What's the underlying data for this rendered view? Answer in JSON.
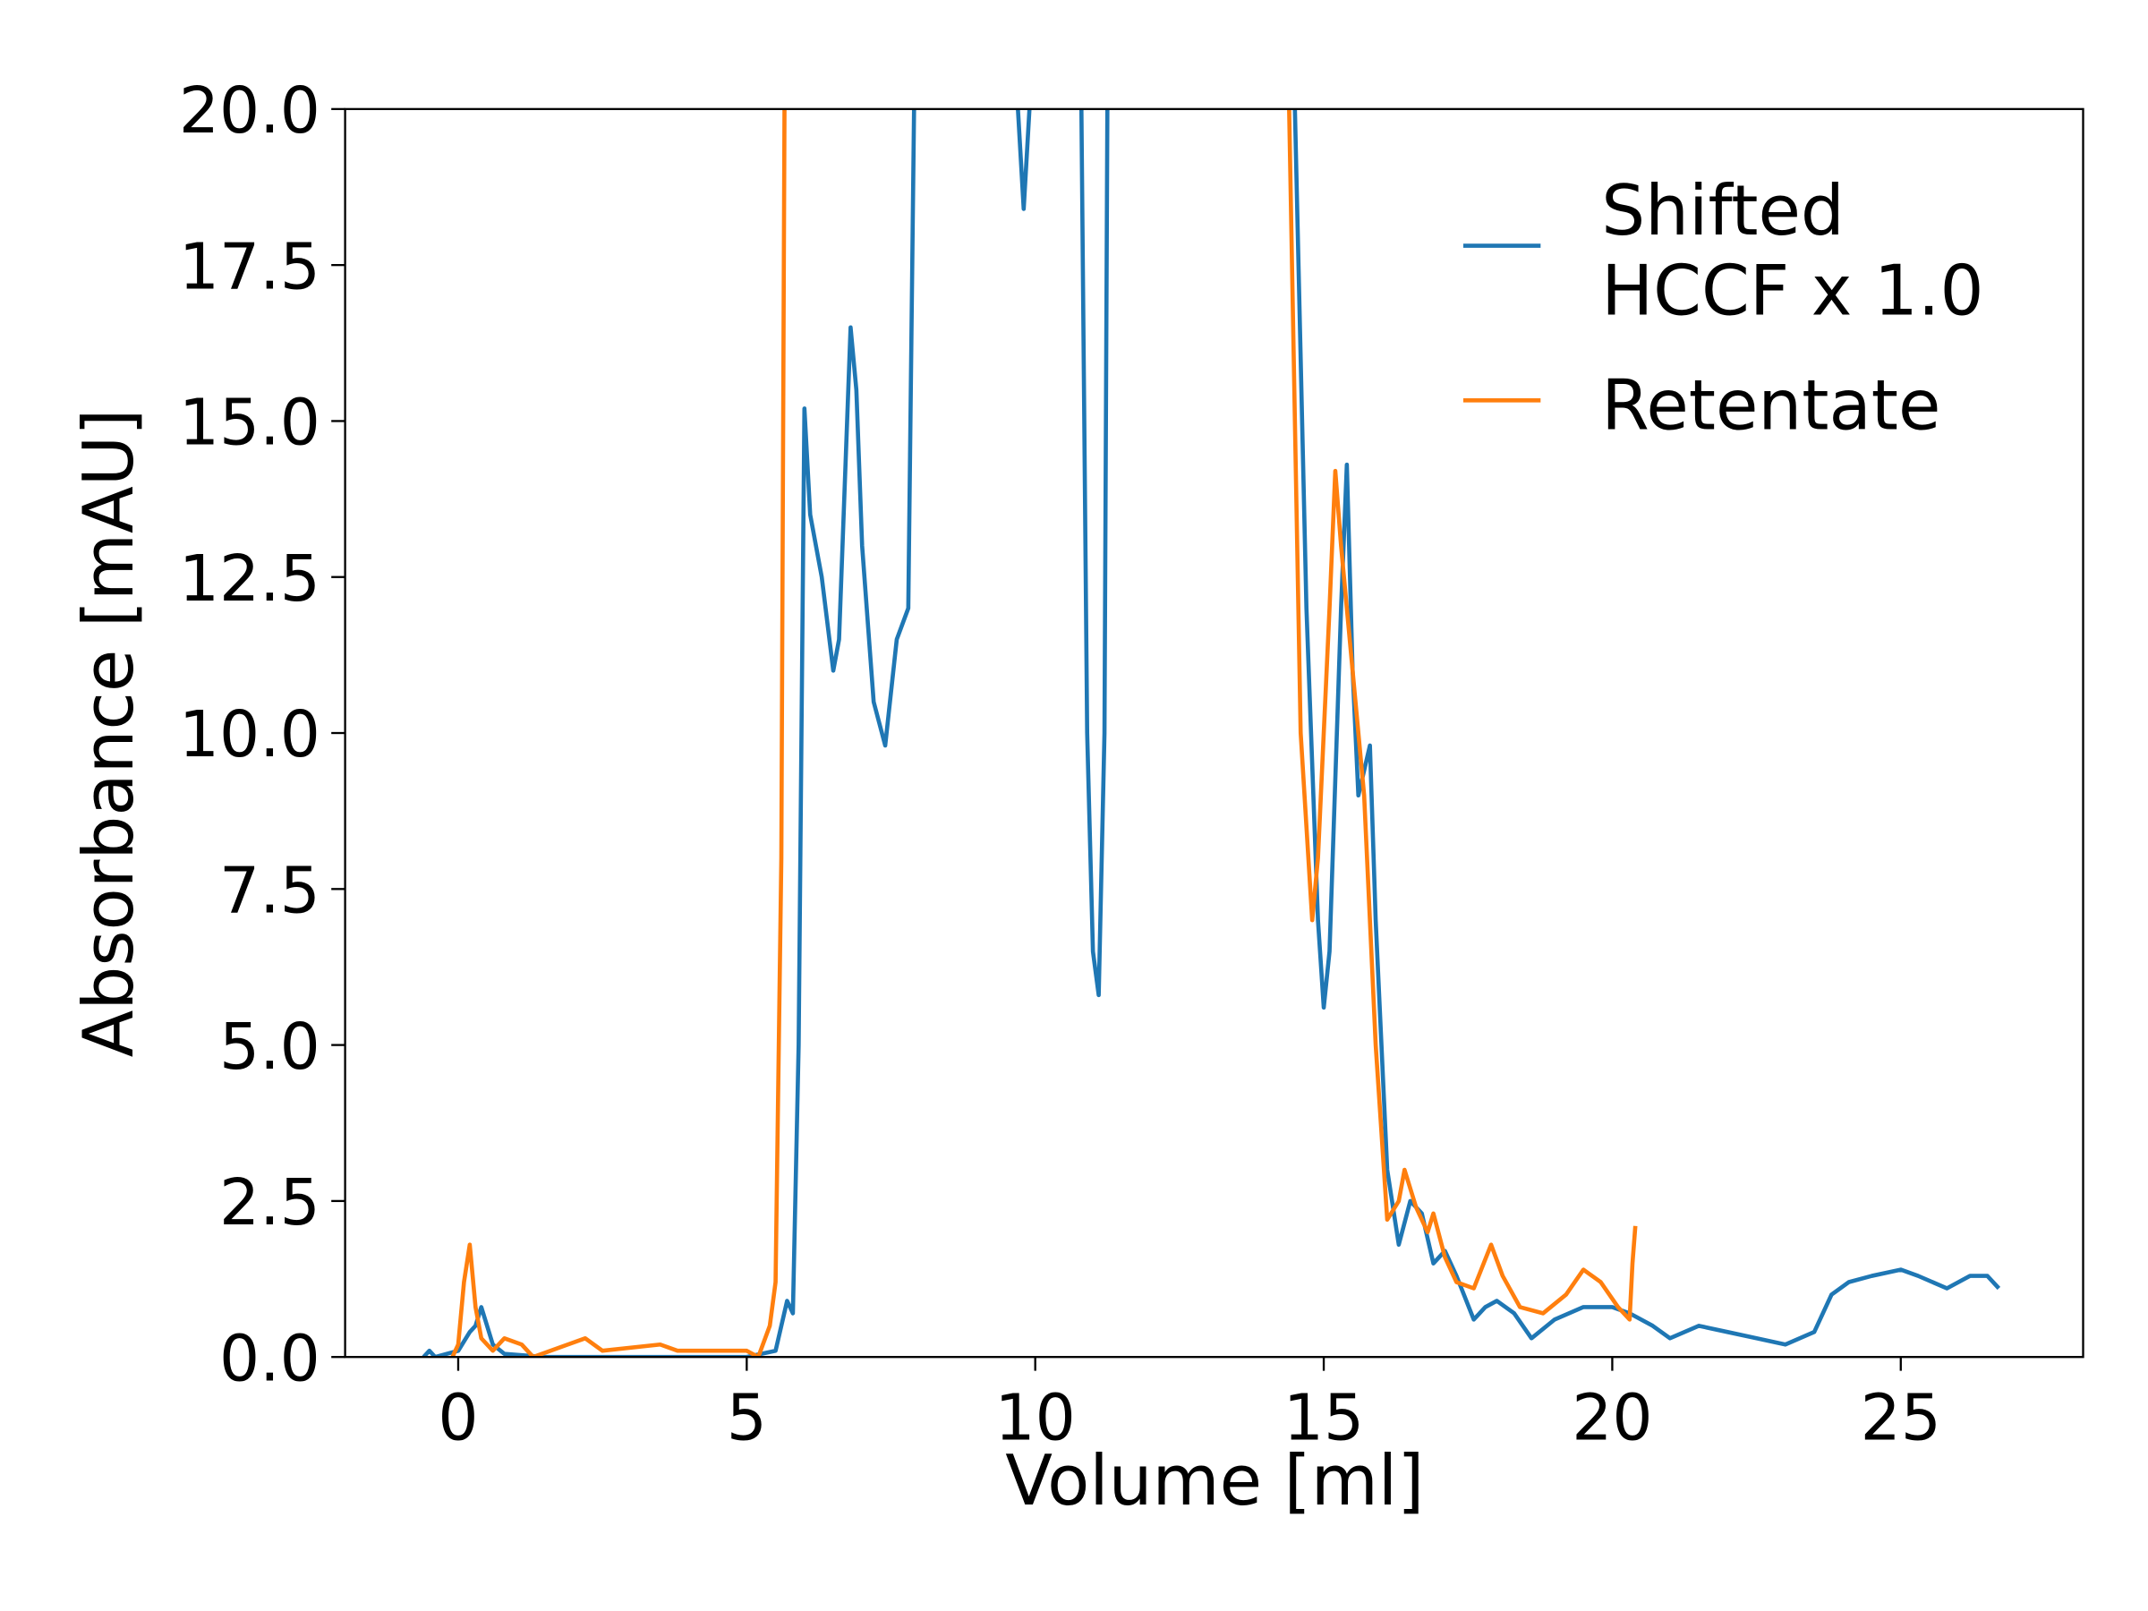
{
  "chart_data": {
    "type": "line",
    "xlabel": "Volume [ml]",
    "ylabel": "Absorbance [mAU]",
    "xlim": [
      -1.96,
      28.16
    ],
    "ylim": [
      0,
      20
    ],
    "xticks": [
      0,
      5,
      10,
      15,
      20,
      25
    ],
    "yticks": [
      {
        "value": 0,
        "label": "0.0"
      },
      {
        "value": 2.5,
        "label": "2.5"
      },
      {
        "value": 5,
        "label": "5.0"
      },
      {
        "value": 7.5,
        "label": "7.5"
      },
      {
        "value": 10,
        "label": "10.0"
      },
      {
        "value": 12.5,
        "label": "12.5"
      },
      {
        "value": 15,
        "label": "15.0"
      },
      {
        "value": 17.5,
        "label": "17.5"
      },
      {
        "value": 20,
        "label": "20.0"
      }
    ],
    "legend": "upper right",
    "series": [
      {
        "name": "Shifted\nHCCF x 1.0",
        "color": "#1f77b4",
        "x": [
          -0.6,
          -0.5,
          -0.4,
          0,
          0.2,
          0.3,
          0.4,
          0.5,
          0.6,
          0.8,
          1.5,
          3,
          5,
          5.5,
          5.7,
          5.8,
          5.9,
          6.0,
          6.1,
          6.3,
          6.5,
          6.6,
          6.8,
          6.9,
          7.0,
          7.2,
          7.4,
          7.6,
          7.8,
          7.9,
          8.0,
          9.5,
          9.7,
          9.8,
          9.9,
          10.0,
          10.6,
          10.8,
          10.9,
          11.0,
          11.1,
          11.2,
          11.3,
          14.3,
          14.5,
          14.7,
          14.9,
          15.0,
          15.1,
          15.3,
          15.4,
          15.5,
          15.6,
          15.8,
          15.9,
          16.1,
          16.3,
          16.5,
          16.7,
          16.9,
          17.1,
          17.3,
          17.6,
          17.8,
          18.0,
          18.3,
          18.6,
          19,
          19.5,
          20,
          20.3,
          20.7,
          21,
          21.5,
          22,
          22.5,
          23,
          23.5,
          23.8,
          24.1,
          24.5,
          25,
          25.3,
          25.8,
          26.2,
          26.5,
          26.7
        ],
        "values": [
          0,
          0.1,
          0,
          0.1,
          0.4,
          0.5,
          0.8,
          0.5,
          0.2,
          0.05,
          0,
          0,
          0,
          0.1,
          0.9,
          0.7,
          5,
          15.2,
          13.5,
          12.5,
          11,
          11.5,
          16.5,
          15.5,
          13,
          10.5,
          9.8,
          11.5,
          12,
          20,
          30,
          30,
          20,
          18.4,
          20,
          30,
          30,
          20,
          10,
          6.5,
          5.8,
          10,
          30,
          30,
          20,
          12,
          7,
          5.6,
          6.5,
          12,
          14.3,
          11,
          9,
          9.8,
          7,
          3,
          1.8,
          2.5,
          2.3,
          1.5,
          1.7,
          1.3,
          0.6,
          0.8,
          0.9,
          0.7,
          0.3,
          0.6,
          0.8,
          0.8,
          0.7,
          0.5,
          0.3,
          0.5,
          0.4,
          0.3,
          0.2,
          0.4,
          1.0,
          1.2,
          1.3,
          1.4,
          1.3,
          1.1,
          1.3,
          1.3,
          1.1
        ]
      },
      {
        "name": "Retentate",
        "color": "#ff7f0e",
        "x": [
          -0.1,
          0.0,
          0.1,
          0.2,
          0.3,
          0.4,
          0.6,
          0.8,
          1.1,
          1.3,
          2.2,
          2.5,
          3.5,
          3.8,
          5.0,
          5.2,
          5.4,
          5.5,
          5.6,
          5.7,
          14.2,
          14.4,
          14.6,
          14.8,
          14.9,
          15.1,
          15.2,
          15.3,
          15.5,
          15.7,
          15.9,
          16.1,
          16.3,
          16.4,
          16.6,
          16.8,
          16.9,
          17.1,
          17.3,
          17.6,
          17.9,
          18.1,
          18.4,
          18.8,
          19.2,
          19.5,
          19.8,
          20.1,
          20.3,
          20.35,
          20.4
        ],
        "values": [
          0,
          0.2,
          1.2,
          1.8,
          0.8,
          0.3,
          0.1,
          0.3,
          0.2,
          0,
          0.3,
          0.1,
          0.2,
          0.1,
          0.1,
          0,
          0.5,
          1.2,
          8,
          30,
          30,
          20,
          10,
          7,
          8,
          12,
          14.2,
          13,
          11,
          9,
          5,
          2.2,
          2.5,
          3.0,
          2.4,
          2.0,
          2.3,
          1.6,
          1.2,
          1.1,
          1.8,
          1.3,
          0.8,
          0.7,
          1.0,
          1.4,
          1.2,
          0.8,
          0.6,
          1.5,
          2.1
        ]
      }
    ]
  }
}
